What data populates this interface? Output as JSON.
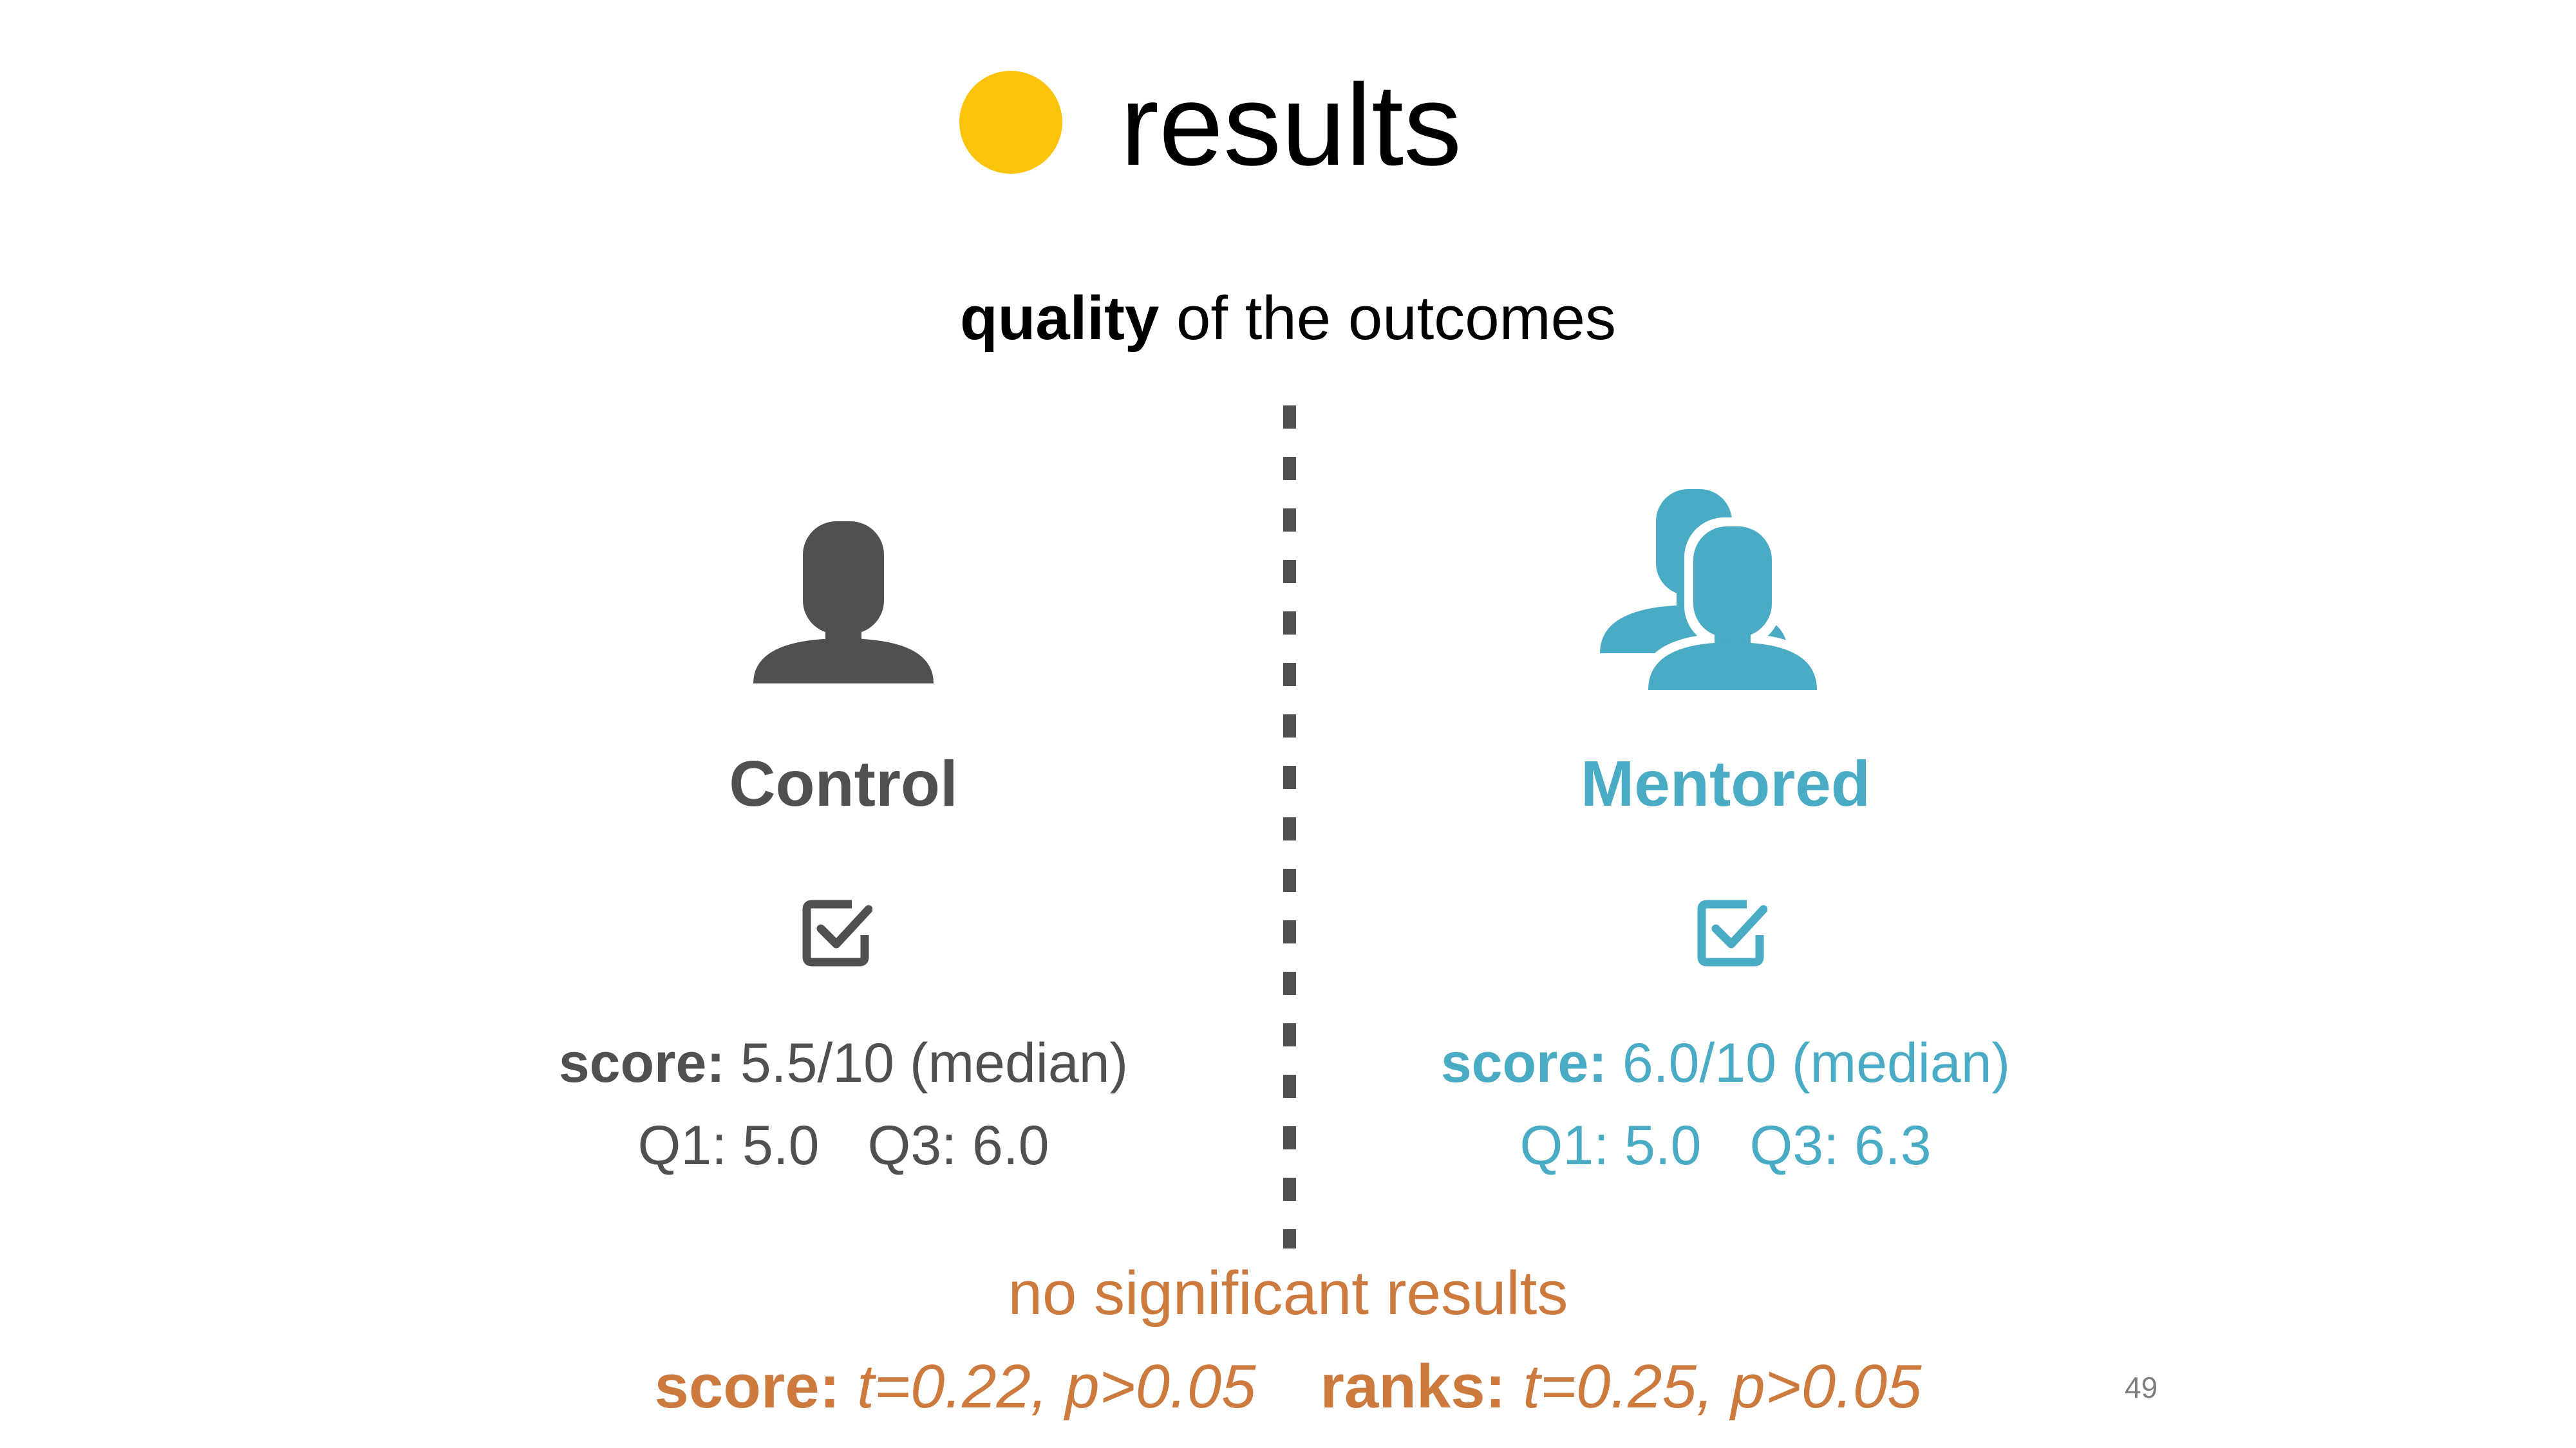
{
  "slide": {
    "title": "results",
    "subtitle_bold": "quality",
    "subtitle_rest": " of the outcomes",
    "page_number": "49"
  },
  "colors": {
    "accent_dot": "#FCC30B",
    "control": "#505050",
    "mentored": "#4AABC5",
    "stats": "#CC7A3E"
  },
  "groups": [
    {
      "label": "Control",
      "icon": "single-user-icon",
      "check_icon": "checkbox-checked-icon",
      "score_label": "score:",
      "score_value": " 5.5/10 (median)",
      "q1": "Q1: 5.0",
      "q3": "Q3: 6.0"
    },
    {
      "label": "Mentored",
      "icon": "two-users-icon",
      "check_icon": "checkbox-checked-icon",
      "score_label": "score:",
      "score_value": " 6.0/10 (median)",
      "q1": "Q1: 5.0",
      "q3": "Q3: 6.3"
    }
  ],
  "conclusion": {
    "note": "no significant results",
    "score_label": "score:",
    "score_stats": " t=0.22, p>0.05",
    "ranks_label": "ranks:",
    "ranks_stats": " t=0.25, p>0.05"
  }
}
